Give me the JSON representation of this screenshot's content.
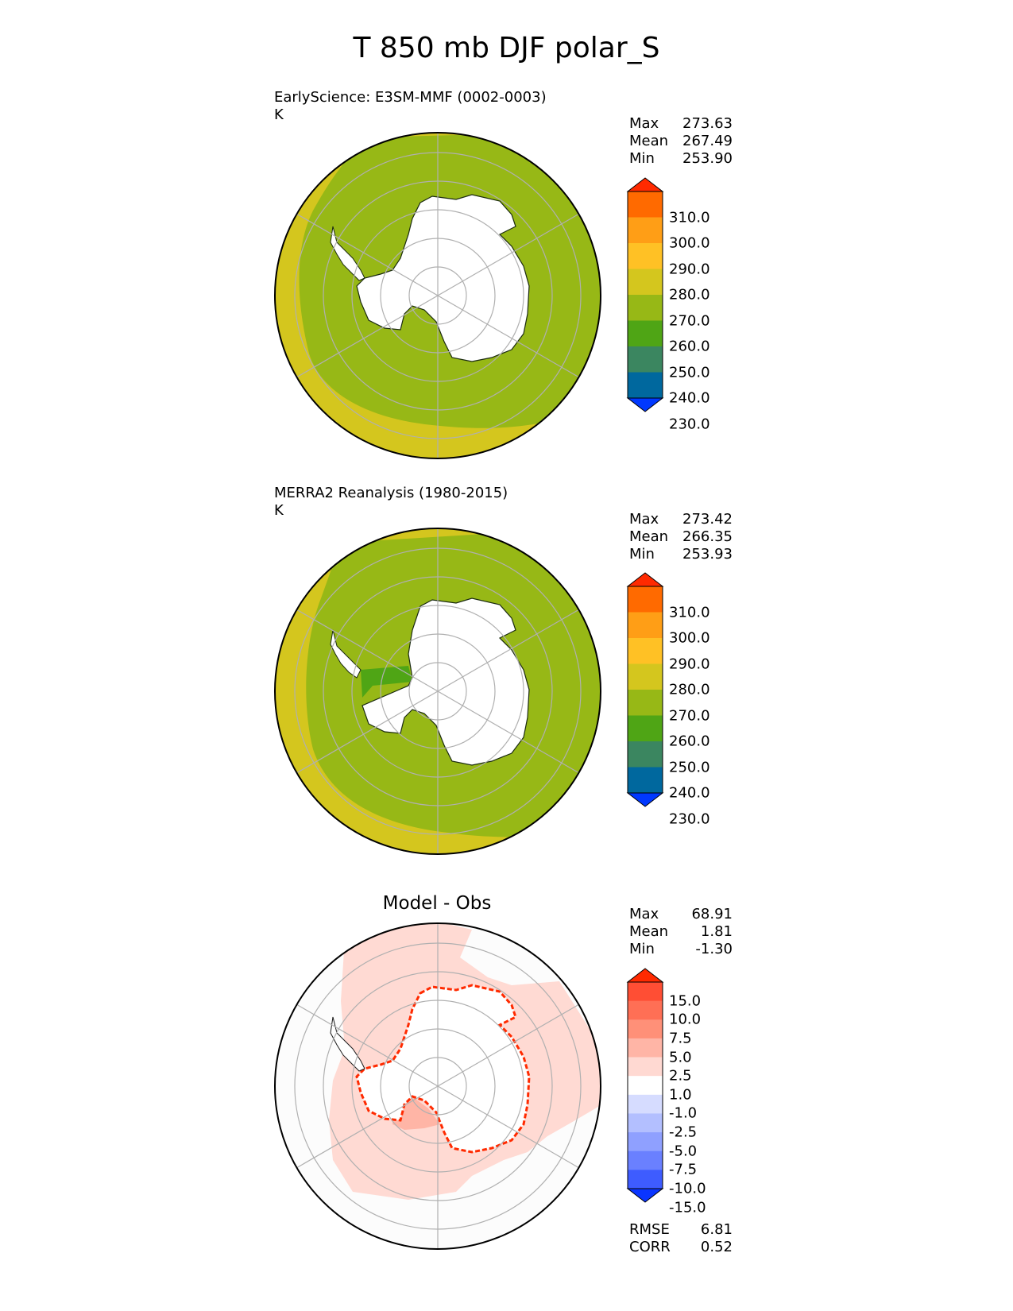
{
  "title": "T 850 mb DJF polar_S",
  "panels": [
    {
      "id": "test",
      "title_line1": "EarlyScience: E3SM-MMF (0002-0003)",
      "title_line2": "K",
      "stats": [
        {
          "label": "Max",
          "value": "273.63"
        },
        {
          "label": "Mean",
          "value": "267.49"
        },
        {
          "label": "Min",
          "value": "253.90"
        }
      ],
      "colorbar": {
        "labels": [
          "310.0",
          "300.0",
          "290.0",
          "280.0",
          "270.0",
          "260.0",
          "250.0",
          "240.0",
          "230.0"
        ],
        "colors": [
          "#ff2a00",
          "#ff6a00",
          "#ff9e16",
          "#ffc125",
          "#d4c61e",
          "#97b816",
          "#4fa515",
          "#3b8660",
          "#00689e",
          "#0038ff"
        ]
      }
    },
    {
      "id": "reference",
      "title_line1": "MERRA2 Reanalysis (1980-2015)",
      "title_line2": "K",
      "stats": [
        {
          "label": "Max",
          "value": "273.42"
        },
        {
          "label": "Mean",
          "value": "266.35"
        },
        {
          "label": "Min",
          "value": "253.93"
        }
      ],
      "colorbar": {
        "labels": [
          "310.0",
          "300.0",
          "290.0",
          "280.0",
          "270.0",
          "260.0",
          "250.0",
          "240.0",
          "230.0"
        ],
        "colors": [
          "#ff2a00",
          "#ff6a00",
          "#ff9e16",
          "#ffc125",
          "#d4c61e",
          "#97b816",
          "#4fa515",
          "#3b8660",
          "#00689e",
          "#0038ff"
        ]
      }
    },
    {
      "id": "diff",
      "center_title": "Model - Obs",
      "stats": [
        {
          "label": "Max",
          "value": "68.91"
        },
        {
          "label": "Mean",
          "value": "1.81"
        },
        {
          "label": "Min",
          "value": "-1.30"
        }
      ],
      "colorbar": {
        "labels": [
          "15.0",
          "10.0",
          "7.5",
          "5.0",
          "2.5",
          "1.0",
          "-1.0",
          "-2.5",
          "-5.0",
          "-7.5",
          "-10.0",
          "-15.0"
        ],
        "colors": [
          "#ff2a00",
          "#ff4e34",
          "#ff6f55",
          "#ff9078",
          "#ffb5a6",
          "#ffd9d2",
          "#ffffff",
          "#d6dcff",
          "#b3bfff",
          "#8fa0ff",
          "#6a80ff",
          "#3e5cff",
          "#0a35ff"
        ]
      },
      "metrics": [
        {
          "label": "RMSE",
          "value": "6.81"
        },
        {
          "label": "CORR",
          "value": "0.52"
        }
      ]
    }
  ],
  "colors": {
    "fill_main": "#97b816",
    "fill_outer": "#d4c61e",
    "fill_green": "#4fa515",
    "diff_pink": "#ffdad3",
    "diff_mid": "#ffb5a6",
    "diff_red": "#ff2a00",
    "land_mask": "#ffffff",
    "grid": "#b0b0b0"
  }
}
